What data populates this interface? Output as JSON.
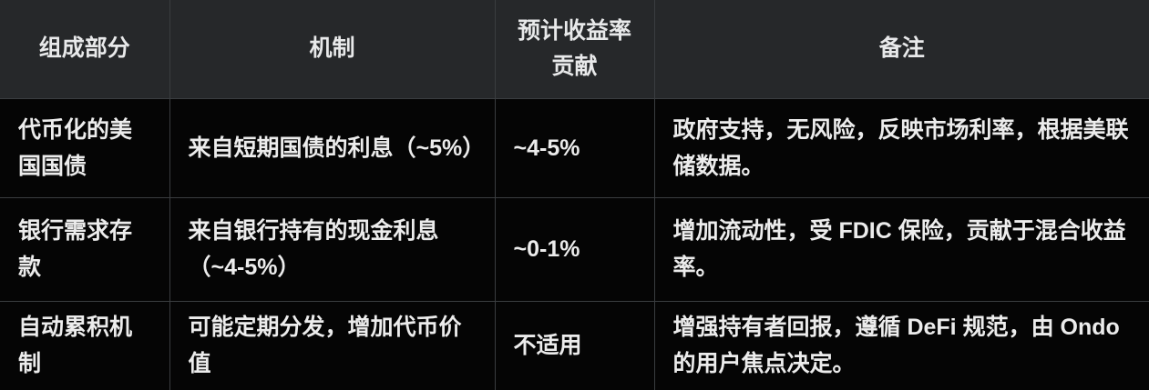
{
  "theme": {
    "page_bg": "#000000",
    "header_bg": "#26282a",
    "body_bg": "#050505",
    "border": "#3a3d40",
    "header_text": "#e8e9ea",
    "body_text": "#ececec"
  },
  "table": {
    "columns": [
      {
        "label": "组成部分"
      },
      {
        "label": "机制"
      },
      {
        "label": "预计收益率贡献"
      },
      {
        "label": "备注"
      }
    ],
    "rows": [
      {
        "component": "代币化的美国国债",
        "mechanism": "来自短期国债的利息（~5%）",
        "yield": "~4-5%",
        "notes": "政府支持，无风险，反映市场利率，根据美联储数据。"
      },
      {
        "component": "银行需求存款",
        "mechanism": "来自银行持有的现金利息（~4-5%）",
        "yield": "~0-1%",
        "notes": "增加流动性，受 FDIC 保险，贡献于混合收益率。"
      },
      {
        "component": "自动累积机制",
        "mechanism": "可能定期分发，增加代币价值",
        "yield": "不适用",
        "notes": "增强持有者回报，遵循 DeFi 规范，由 Ondo 的用户焦点决定。"
      }
    ]
  }
}
